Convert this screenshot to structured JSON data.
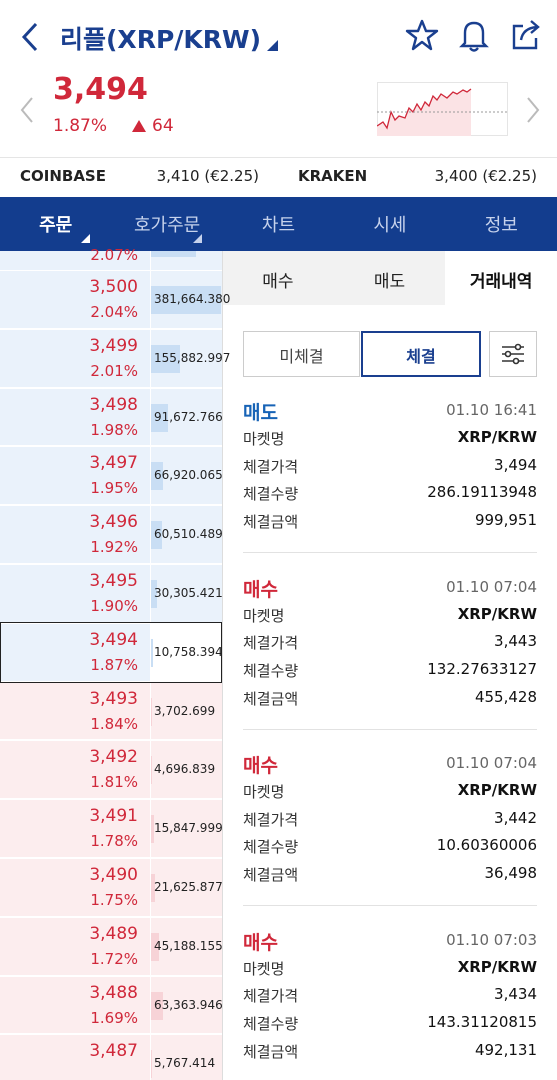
{
  "header": {
    "title": "리플(XRP/KRW)"
  },
  "ticker": {
    "price": "3,494",
    "change_rate": "1.87%",
    "change": "64"
  },
  "exchanges": [
    {
      "name": "COINBASE",
      "price": "3,410 (€2.25)"
    },
    {
      "name": "KRAKEN",
      "price": "3,400 (€2.25)"
    }
  ],
  "tabs": [
    "주문",
    "호가주문",
    "차트",
    "시세",
    "정보"
  ],
  "orderbook": {
    "partial_rate": "2.07%",
    "asks": [
      {
        "price": "3,500",
        "rate": "2.04%",
        "volume": "381,664.380"
      },
      {
        "price": "3,499",
        "rate": "2.01%",
        "volume": "155,882.997"
      },
      {
        "price": "3,498",
        "rate": "1.98%",
        "volume": "91,672.766"
      },
      {
        "price": "3,497",
        "rate": "1.95%",
        "volume": "66,920.065"
      },
      {
        "price": "3,496",
        "rate": "1.92%",
        "volume": "60,510.489"
      },
      {
        "price": "3,495",
        "rate": "1.90%",
        "volume": "30,305.421"
      },
      {
        "price": "3,494",
        "rate": "1.87%",
        "volume": "10,758.394"
      }
    ],
    "bids": [
      {
        "price": "3,493",
        "rate": "1.84%",
        "volume": "3,702.699"
      },
      {
        "price": "3,492",
        "rate": "1.81%",
        "volume": "4,696.839"
      },
      {
        "price": "3,491",
        "rate": "1.78%",
        "volume": "15,847.999"
      },
      {
        "price": "3,490",
        "rate": "1.75%",
        "volume": "21,625.877"
      },
      {
        "price": "3,489",
        "rate": "1.72%",
        "volume": "45,188.155"
      },
      {
        "price": "3,488",
        "rate": "1.69%",
        "volume": "63,363.946"
      },
      {
        "price": "3,487",
        "volume": "5,767.414"
      }
    ]
  },
  "trade_tabs": [
    "매수",
    "매도",
    "거래내역"
  ],
  "filters": [
    "미체결",
    "체결"
  ],
  "trades": [
    {
      "type": "매도",
      "color": "#1763b6",
      "time": "01.10 16:41",
      "fields": [
        {
          "label": "마켓명",
          "value": "XRP/KRW"
        },
        {
          "label": "체결가격",
          "value": "3,494"
        },
        {
          "label": "체결수량",
          "value": "286.19113948"
        },
        {
          "label": "체결금액",
          "value": "999,951"
        }
      ]
    },
    {
      "type": "매수",
      "color": "#d0283a",
      "time": "01.10 07:04",
      "fields": [
        {
          "label": "마켓명",
          "value": "XRP/KRW"
        },
        {
          "label": "체결가격",
          "value": "3,443"
        },
        {
          "label": "체결수량",
          "value": "132.27633127"
        },
        {
          "label": "체결금액",
          "value": "455,428"
        }
      ]
    },
    {
      "type": "매수",
      "color": "#d0283a",
      "time": "01.10 07:04",
      "fields": [
        {
          "label": "마켓명",
          "value": "XRP/KRW"
        },
        {
          "label": "체결가격",
          "value": "3,442"
        },
        {
          "label": "체결수량",
          "value": "10.60360006"
        },
        {
          "label": "체결금액",
          "value": "36,498"
        }
      ]
    },
    {
      "type": "매수",
      "color": "#d0283a",
      "time": "01.10 07:03",
      "fields": [
        {
          "label": "마켓명",
          "value": "XRP/KRW"
        },
        {
          "label": "체결가격",
          "value": "3,434"
        },
        {
          "label": "체결수량",
          "value": "143.31120815"
        },
        {
          "label": "체결금액",
          "value": "492,131"
        }
      ]
    }
  ]
}
